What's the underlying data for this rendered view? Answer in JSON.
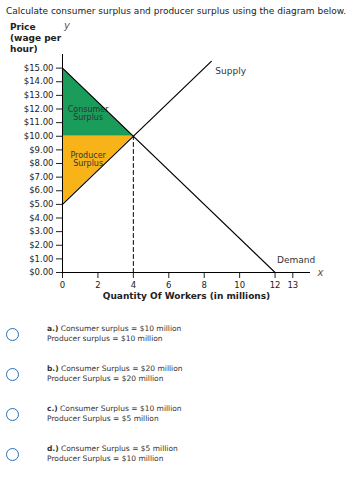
{
  "chart_data": {
    "type": "line",
    "title": "Calculate consumer surplus and producer surplus using the diagram below.",
    "y_label": "Price (wage per hour)",
    "x_label": "Quantity Of Workers (in millions)",
    "axis_letters": {
      "x": "x",
      "y": "y"
    },
    "xlim": [
      0,
      14
    ],
    "xticks": [
      0,
      2,
      4,
      6,
      8,
      10,
      12,
      13
    ],
    "ylim": [
      0,
      16
    ],
    "yticks": [
      {
        "value": 0,
        "label": "$0.00"
      },
      {
        "value": 1,
        "label": "$1.00"
      },
      {
        "value": 2,
        "label": "$2.00"
      },
      {
        "value": 3,
        "label": "$3.00"
      },
      {
        "value": 4,
        "label": "$4.00"
      },
      {
        "value": 5,
        "label": "$5.00"
      },
      {
        "value": 6,
        "label": "$6.00"
      },
      {
        "value": 7,
        "label": "$7.00"
      },
      {
        "value": 8,
        "label": "$8.00"
      },
      {
        "value": 9,
        "label": "$9.00"
      },
      {
        "value": 10,
        "label": "$10.00"
      },
      {
        "value": 11,
        "label": "$11.00"
      },
      {
        "value": 12,
        "label": "$12.00"
      },
      {
        "value": 13,
        "label": "$13.00"
      },
      {
        "value": 14,
        "label": "$14.00"
      },
      {
        "value": 15,
        "label": "$15.00"
      }
    ],
    "series": [
      {
        "name": "Supply",
        "color": "#000000",
        "x": [
          0,
          8.4
        ],
        "values": [
          5,
          15.5
        ]
      },
      {
        "name": "Demand",
        "color": "#000000",
        "x": [
          0,
          12
        ],
        "values": [
          15,
          0
        ]
      }
    ],
    "areas": [
      {
        "name": "Consumer Surplus",
        "color": "#1a9c5a",
        "x": [
          0,
          4
        ],
        "lower": [
          10,
          10
        ],
        "upper": [
          15,
          10
        ]
      },
      {
        "name": "Producer Surplus",
        "color": "#f7b318",
        "x": [
          0,
          4
        ],
        "lower": [
          5,
          10
        ],
        "upper": [
          10,
          10
        ]
      }
    ],
    "reference_lines": [
      {
        "x": [
          4,
          4
        ],
        "values": [
          0,
          10
        ],
        "line_style": "dashed",
        "color": "#000000"
      }
    ]
  },
  "choices": [
    {
      "label": "a.)",
      "lines": [
        "Consumer surplus = $10 million",
        "Producer surplus = $10 million"
      ]
    },
    {
      "label": "b.)",
      "lines": [
        "Consumer Surplus = $20 million",
        "Producer Surplus = $20 million"
      ]
    },
    {
      "label": "c.)",
      "lines": [
        "Consumer Surplus = $10 million",
        "Producer Surplus = $5 million"
      ]
    },
    {
      "label": "d.)",
      "lines": [
        "Consumer Surplus = $5 million",
        "Producer Surplus = $10 million"
      ]
    }
  ]
}
